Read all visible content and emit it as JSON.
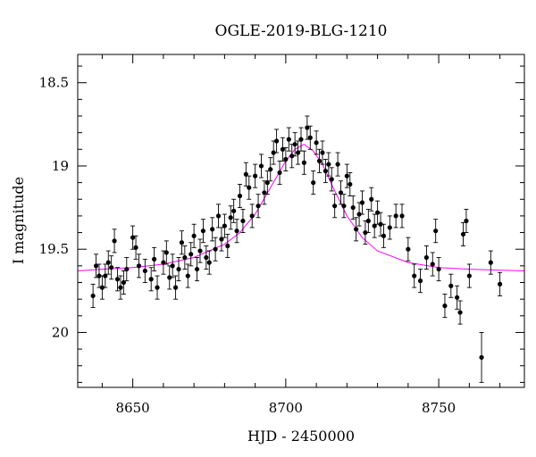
{
  "chart_data": {
    "type": "scatter",
    "title": "OGLE-2019-BLG-1210",
    "xlabel": "HJD - 2450000",
    "ylabel": "I magnitude",
    "xlim": [
      8632,
      8778
    ],
    "ylim": [
      20.33,
      18.33
    ],
    "y_inverted": true,
    "x_ticks": [
      8650,
      8700,
      8750
    ],
    "y_ticks": [
      18.5,
      19,
      19.5,
      20
    ],
    "x_tick_labels": [
      "8650",
      "8700",
      "8750"
    ],
    "y_tick_labels": [
      "18.5",
      "19",
      "19.5",
      "20"
    ],
    "grid": false,
    "colors": {
      "points": "#000000",
      "model": "#ff00ff"
    },
    "model_curve": {
      "x": [
        8632,
        8640,
        8650,
        8660,
        8670,
        8680,
        8685,
        8690,
        8695,
        8700,
        8703,
        8706,
        8709,
        8712,
        8715,
        8720,
        8725,
        8730,
        8740,
        8750,
        8760,
        8778
      ],
      "y": [
        19.63,
        19.62,
        19.61,
        19.59,
        19.55,
        19.47,
        19.4,
        19.29,
        19.13,
        18.97,
        18.9,
        18.87,
        18.91,
        18.99,
        19.11,
        19.3,
        19.43,
        19.51,
        19.58,
        19.61,
        19.62,
        19.63
      ]
    },
    "series": [
      {
        "x": [
          8637,
          8638,
          8639,
          8640,
          8641,
          8642,
          8643,
          8644,
          8645,
          8646,
          8647,
          8648,
          8650,
          8651,
          8652,
          8654,
          8656,
          8657,
          8658,
          8660,
          8661,
          8662,
          8663,
          8664,
          8665,
          8666,
          8667,
          8668,
          8669,
          8670,
          8671,
          8672,
          8673,
          8674,
          8675,
          8676,
          8677,
          8678,
          8679,
          8680,
          8681,
          8682,
          8683,
          8684,
          8685,
          8686,
          8687,
          8688,
          8689,
          8690,
          8691,
          8692,
          8693,
          8694,
          8695,
          8696,
          8697,
          8698,
          8699,
          8700,
          8701,
          8702,
          8703,
          8704,
          8705,
          8706,
          8707,
          8708,
          8709,
          8710,
          8711,
          8712,
          8713,
          8714,
          8715,
          8716,
          8717,
          8718,
          8719,
          8720,
          8721,
          8722,
          8723,
          8724,
          8725,
          8726,
          8727,
          8728,
          8729,
          8730,
          8731,
          8732,
          8734,
          8736,
          8738,
          8740,
          8742,
          8744,
          8746,
          8748,
          8749,
          8750,
          8752,
          8754,
          8756,
          8757,
          8758,
          8759,
          8760,
          8764,
          8767,
          8770
        ],
        "y": [
          19.78,
          19.6,
          19.66,
          19.73,
          19.66,
          19.58,
          19.61,
          19.45,
          19.68,
          19.73,
          19.7,
          19.62,
          19.43,
          19.49,
          19.6,
          19.63,
          19.68,
          19.56,
          19.73,
          19.58,
          19.52,
          19.67,
          19.6,
          19.73,
          19.62,
          19.46,
          19.55,
          19.66,
          19.53,
          19.42,
          19.62,
          19.51,
          19.39,
          19.55,
          19.58,
          19.38,
          19.5,
          19.3,
          19.44,
          19.36,
          19.48,
          19.31,
          19.27,
          19.39,
          19.18,
          19.33,
          19.05,
          19.13,
          19.3,
          19.06,
          19.24,
          19.0,
          19.16,
          19.1,
          19.02,
          18.92,
          18.85,
          19.04,
          18.9,
          18.96,
          18.84,
          18.94,
          18.87,
          18.92,
          18.84,
          18.98,
          18.77,
          18.83,
          19.1,
          18.86,
          18.97,
          18.92,
          19.03,
          18.99,
          19.08,
          19.24,
          18.99,
          19.16,
          19.24,
          19.06,
          19.11,
          19.25,
          19.38,
          19.29,
          19.22,
          19.4,
          19.33,
          19.2,
          19.36,
          19.28,
          19.35,
          19.42,
          19.37,
          19.3,
          19.3,
          19.5,
          19.66,
          19.69,
          19.55,
          19.59,
          19.39,
          19.62,
          19.84,
          19.72,
          19.79,
          19.88,
          19.41,
          19.33,
          19.66,
          20.15,
          19.58,
          19.71
        ],
        "y_err": [
          0.07,
          0.07,
          0.07,
          0.07,
          0.07,
          0.07,
          0.07,
          0.07,
          0.07,
          0.07,
          0.07,
          0.07,
          0.07,
          0.07,
          0.07,
          0.07,
          0.07,
          0.07,
          0.07,
          0.07,
          0.07,
          0.07,
          0.07,
          0.07,
          0.07,
          0.07,
          0.07,
          0.07,
          0.07,
          0.07,
          0.07,
          0.07,
          0.07,
          0.07,
          0.07,
          0.07,
          0.07,
          0.07,
          0.07,
          0.07,
          0.07,
          0.07,
          0.07,
          0.07,
          0.07,
          0.07,
          0.07,
          0.07,
          0.07,
          0.07,
          0.07,
          0.07,
          0.07,
          0.07,
          0.07,
          0.07,
          0.07,
          0.07,
          0.07,
          0.07,
          0.07,
          0.07,
          0.07,
          0.07,
          0.07,
          0.07,
          0.07,
          0.07,
          0.07,
          0.07,
          0.07,
          0.07,
          0.07,
          0.07,
          0.07,
          0.07,
          0.07,
          0.07,
          0.07,
          0.07,
          0.07,
          0.07,
          0.07,
          0.07,
          0.07,
          0.07,
          0.07,
          0.07,
          0.07,
          0.07,
          0.07,
          0.07,
          0.07,
          0.07,
          0.07,
          0.07,
          0.07,
          0.07,
          0.07,
          0.07,
          0.07,
          0.07,
          0.07,
          0.07,
          0.07,
          0.07,
          0.07,
          0.07,
          0.07,
          0.15,
          0.07,
          0.07
        ]
      }
    ]
  }
}
